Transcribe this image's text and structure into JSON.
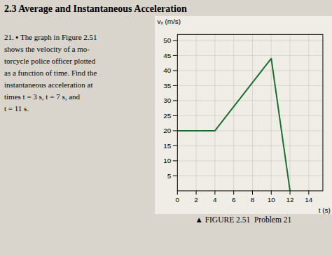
{
  "chart_data": {
    "type": "line",
    "title": "2.3 Average and Instantaneous Acceleration",
    "annotations": [
      "21. ▪ The graph in Figure 2.51",
      "shows the velocity of a mo-",
      "torcycle police officer plotted",
      "as a function of time. Find the",
      "instantaneous acceleration at",
      "times t = 3 s, t = 7 s, and",
      "t = 11 s."
    ],
    "caption": "▲ FIGURE 2.51  Problem 21",
    "xlabel": "t (s)",
    "ylabel": "vₓ (m/s)",
    "x": [
      0,
      4,
      10,
      12
    ],
    "values": [
      20,
      20,
      44,
      0
    ],
    "color": "#1a6e2e",
    "xlim": [
      0,
      15.5
    ],
    "ylim": [
      0,
      52
    ],
    "xticks": [
      0,
      2,
      4,
      6,
      8,
      10,
      12,
      14
    ],
    "yticks": [
      5,
      10,
      15,
      20,
      25,
      30,
      35,
      40,
      45,
      50
    ],
    "grid": true
  }
}
